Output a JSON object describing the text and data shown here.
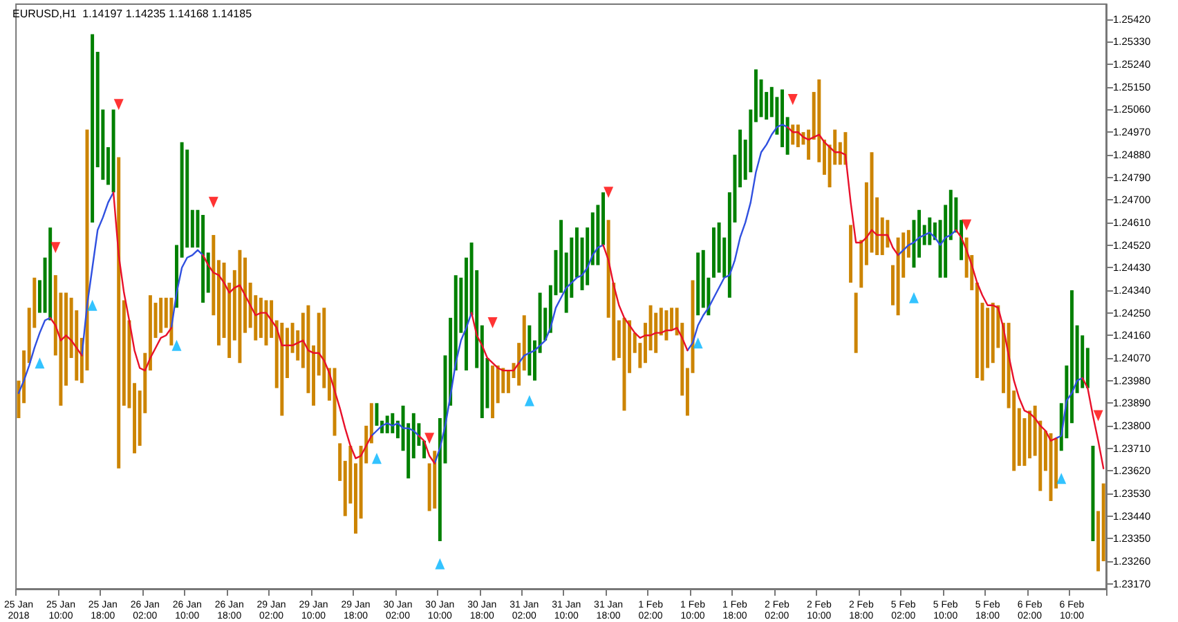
{
  "chart_data": {
    "type": "bar",
    "title": "EURUSD,H1  1.14197 1.14235 1.14168 1.14185",
    "grid": false,
    "categories": [
      "25 Jan 2018",
      null,
      null,
      null,
      null,
      null,
      null,
      null,
      "25 Jan 10:00",
      null,
      null,
      null,
      null,
      null,
      null,
      null,
      "25 Jan 18:00",
      null,
      null,
      null,
      null,
      null,
      null,
      null,
      "26 Jan 02:00",
      null,
      null,
      null,
      null,
      null,
      null,
      null,
      "26 Jan 10:00",
      null,
      null,
      null,
      null,
      null,
      null,
      null,
      "26 Jan 18:00",
      null,
      null,
      null,
      null,
      null,
      null,
      null,
      "29 Jan 02:00",
      null,
      null,
      null,
      null,
      null,
      null,
      null,
      "29 Jan 10:00",
      null,
      null,
      null,
      null,
      null,
      null,
      null,
      "29 Jan 18:00",
      null,
      null,
      null,
      null,
      null,
      null,
      null,
      "30 Jan 02:00",
      null,
      null,
      null,
      null,
      null,
      null,
      null,
      "30 Jan 10:00",
      null,
      null,
      null,
      null,
      null,
      null,
      null,
      "30 Jan 18:00",
      null,
      null,
      null,
      null,
      null,
      null,
      null,
      "31 Jan 02:00",
      null,
      null,
      null,
      null,
      null,
      null,
      null,
      "31 Jan 10:00",
      null,
      null,
      null,
      null,
      null,
      null,
      null,
      "31 Jan 18:00",
      null,
      null,
      null,
      null,
      null,
      null,
      null,
      "1 Feb 02:00",
      null,
      null,
      null,
      null,
      null,
      null,
      null,
      "1 Feb 10:00",
      null,
      null,
      null,
      null,
      null,
      null,
      null,
      "1 Feb 18:00",
      null,
      null,
      null,
      null,
      null,
      null,
      null,
      "2 Feb 02:00",
      null,
      null,
      null,
      null,
      null,
      null,
      null,
      "2 Feb 10:00",
      null,
      null,
      null,
      null,
      null,
      null,
      null,
      "2 Feb 18:00",
      null,
      null,
      null,
      null,
      null,
      null,
      null,
      "5 Feb 02:00",
      null,
      null,
      null,
      null,
      null,
      null,
      null,
      "5 Feb 10:00",
      null,
      null,
      null,
      null,
      null,
      null,
      null,
      "5 Feb 18:00",
      null,
      null,
      null,
      null,
      null,
      null,
      null,
      "6 Feb 02:00",
      null,
      null,
      null,
      null,
      null,
      null,
      null,
      "6 Feb 10:00",
      null,
      null,
      null,
      null,
      null,
      null
    ],
    "ylim": [
      1.2315,
      1.2548
    ],
    "yticks": [
      {
        "value": 1.2317,
        "label": "1.23170"
      },
      {
        "value": 1.2326,
        "label": "1.23260"
      },
      {
        "value": 1.2335,
        "label": "1.23350"
      },
      {
        "value": 1.2344,
        "label": "1.23440"
      },
      {
        "value": 1.2353,
        "label": "1.23530"
      },
      {
        "value": 1.2362,
        "label": "1.23620"
      },
      {
        "value": 1.2371,
        "label": "1.23710"
      },
      {
        "value": 1.238,
        "label": "1.23800"
      },
      {
        "value": 1.2389,
        "label": "1.23890"
      },
      {
        "value": 1.2398,
        "label": "1.23980"
      },
      {
        "value": 1.2407,
        "label": "1.24070"
      },
      {
        "value": 1.2416,
        "label": "1.24160"
      },
      {
        "value": 1.2425,
        "label": "1.24250"
      },
      {
        "value": 1.2434,
        "label": "1.24340"
      },
      {
        "value": 1.2443,
        "label": "1.24430"
      },
      {
        "value": 1.2452,
        "label": "1.24520"
      },
      {
        "value": 1.2461,
        "label": "1.24610"
      },
      {
        "value": 1.247,
        "label": "1.24700"
      },
      {
        "value": 1.2479,
        "label": "1.24790"
      },
      {
        "value": 1.2488,
        "label": "1.24880"
      },
      {
        "value": 1.2497,
        "label": "1.24970"
      },
      {
        "value": 1.2506,
        "label": "1.25060"
      },
      {
        "value": 1.2515,
        "label": "1.25150"
      },
      {
        "value": 1.2524,
        "label": "1.25240"
      },
      {
        "value": 1.2533,
        "label": "1.25330"
      },
      {
        "value": 1.2542,
        "label": "1.25420"
      }
    ],
    "series": [
      {
        "base": [
          1.2383,
          1.2389,
          1.2405,
          1.2419,
          1.2425,
          1.2425,
          1.2422,
          1.2408,
          1.2388,
          1.2396,
          1.2407,
          1.2398,
          1.2397,
          1.2402,
          1.2461,
          1.2483,
          1.2478,
          1.2476,
          1.2473,
          1.2363,
          1.2388,
          1.2387,
          1.2369,
          1.2372,
          1.2385,
          1.2402,
          1.2415,
          1.2417,
          1.2419,
          1.2412,
          1.2427,
          1.2447,
          1.2451,
          1.2451,
          1.2451,
          1.2429,
          1.2433,
          1.2424,
          1.2412,
          1.2415,
          1.2407,
          1.2414,
          1.2405,
          1.2417,
          1.2419,
          1.2414,
          1.2415,
          1.2412,
          1.2415,
          1.2395,
          1.2384,
          1.2399,
          1.2409,
          1.2406,
          1.2403,
          1.2393,
          1.2388,
          1.24,
          1.2395,
          1.239,
          1.2376,
          1.2358,
          1.2344,
          1.2349,
          1.2337,
          1.2343,
          1.2365,
          1.2373,
          1.238,
          1.2377,
          1.2377,
          1.2377,
          1.2375,
          1.237,
          1.2359,
          1.2367,
          1.2372,
          1.2367,
          1.2346,
          1.2347,
          1.2334,
          1.2365,
          1.2388,
          1.2402,
          1.2417,
          1.2402,
          1.2424,
          1.2403,
          1.2383,
          1.2387,
          1.2383,
          1.2389,
          1.2393,
          1.2393,
          1.2399,
          1.2396,
          1.2402,
          1.24,
          1.2398,
          1.2409,
          1.2414,
          1.2417,
          1.2432,
          1.2433,
          1.2425,
          1.2431,
          1.2439,
          1.2434,
          1.2436,
          1.2444,
          1.2444,
          1.2452,
          1.2423,
          1.2406,
          1.2407,
          1.2386,
          1.2401,
          1.2409,
          1.2403,
          1.2405,
          1.241,
          1.2409,
          1.2416,
          1.2414,
          1.2418,
          1.2416,
          1.2392,
          1.2384,
          1.2401,
          1.2424,
          1.2427,
          1.2424,
          1.2439,
          1.2441,
          1.2439,
          1.2431,
          1.2461,
          1.2475,
          1.2478,
          1.2481,
          1.2501,
          1.2503,
          1.2502,
          1.2503,
          1.2496,
          1.2491,
          1.2488,
          1.2492,
          1.2491,
          1.2492,
          1.2486,
          1.2494,
          1.2485,
          1.248,
          1.2475,
          1.2484,
          1.2484,
          1.2484,
          1.2437,
          1.2409,
          1.2435,
          1.2444,
          1.2449,
          1.2448,
          1.2448,
          1.2451,
          1.2428,
          1.2424,
          1.2439,
          1.2447,
          1.2443,
          1.2447,
          1.2452,
          1.2452,
          1.2454,
          1.2439,
          1.2439,
          1.2454,
          1.2457,
          1.2446,
          1.2439,
          1.2434,
          1.2399,
          1.2398,
          1.2403,
          1.2405,
          1.2411,
          1.2393,
          1.2387,
          1.2362,
          1.2364,
          1.2364,
          1.2367,
          1.2368,
          1.2354,
          1.2362,
          1.235,
          1.2355,
          1.237,
          1.2375,
          1.2381,
          1.2393,
          1.2395,
          1.2395,
          1.2334,
          1.2322,
          1.2326
        ],
        "values": [
          0.0015,
          0.0021,
          0.0022,
          0.002,
          0.0013,
          0.0022,
          0.0037,
          0.0032,
          0.0045,
          0.0037,
          0.0024,
          0.0028,
          0.0018,
          0.0096,
          0.0075,
          0.0046,
          0.0028,
          0.0015,
          0.0033,
          0.0124,
          0.0042,
          0.0035,
          0.0028,
          0.0022,
          0.0024,
          0.003,
          0.0014,
          0.0014,
          0.0012,
          0.0019,
          0.0025,
          0.0046,
          0.0039,
          0.0015,
          0.0015,
          0.0035,
          0.0016,
          0.0032,
          0.0034,
          0.003,
          0.003,
          0.0028,
          0.0045,
          0.003,
          0.0018,
          0.0018,
          0.0016,
          0.0018,
          0.0015,
          0.0027,
          0.0037,
          0.002,
          0.0012,
          0.0012,
          0.0022,
          0.0035,
          0.0024,
          0.0025,
          0.0032,
          0.0013,
          0.0027,
          0.0015,
          0.0022,
          0.0023,
          0.0028,
          0.0029,
          0.0015,
          0.0016,
          0.0009,
          0.0005,
          0.0007,
          0.0008,
          0.0007,
          0.0018,
          0.0022,
          0.0018,
          0.0009,
          0.0007,
          0.0019,
          0.0023,
          0.0049,
          0.0043,
          0.0035,
          0.0038,
          0.0022,
          0.0045,
          0.0029,
          0.0039,
          0.0037,
          0.002,
          0.0021,
          0.0015,
          0.001,
          0.0009,
          0.0006,
          0.0017,
          0.0022,
          0.002,
          0.0016,
          0.0024,
          0.0013,
          0.0019,
          0.0018,
          0.0029,
          0.0024,
          0.0024,
          0.002,
          0.0021,
          0.0023,
          0.0021,
          0.0024,
          0.0021,
          0.0039,
          0.0031,
          0.0015,
          0.0037,
          0.0021,
          0.0008,
          0.001,
          0.0016,
          0.0018,
          0.0016,
          0.0011,
          0.0012,
          0.0009,
          0.0011,
          0.0029,
          0.0019,
          0.0037,
          0.0025,
          0.0023,
          0.0015,
          0.002,
          0.002,
          0.0016,
          0.0042,
          0.0027,
          0.0023,
          0.0016,
          0.0025,
          0.0021,
          0.0015,
          0.0011,
          0.0012,
          0.0015,
          0.0023,
          0.0015,
          0.0008,
          0.0009,
          0.0005,
          0.0012,
          0.0019,
          0.0033,
          0.0014,
          0.0017,
          0.0014,
          0.0009,
          0.0013,
          0.0023,
          0.0024,
          0.0019,
          0.0033,
          0.004,
          0.0023,
          0.0015,
          0.0011,
          0.0016,
          0.0031,
          0.0018,
          0.0011,
          0.0019,
          0.0019,
          0.0008,
          0.0011,
          0.0007,
          0.0023,
          0.0029,
          0.002,
          0.0014,
          0.0016,
          0.0016,
          0.0014,
          0.0038,
          0.0031,
          0.0024,
          0.0024,
          0.0017,
          0.0028,
          0.0034,
          0.0032,
          0.0023,
          0.0019,
          0.0019,
          0.002,
          0.0028,
          0.0016,
          0.0027,
          0.002,
          0.0019,
          0.0029,
          0.0053,
          0.0027,
          0.0021,
          0.0016,
          0.0038,
          0.0024,
          0.0031
        ],
        "colors": [
          "#cc8400",
          "#cc8400",
          "#cc8400",
          "#cc8400",
          "#008000",
          "#008000",
          "#008000",
          "#cc8400",
          "#cc8400",
          "#cc8400",
          "#cc8400",
          "#cc8400",
          "#cc8400",
          "#cc8400",
          "#008000",
          "#008000",
          "#008000",
          "#008000",
          "#008000",
          "#cc8400",
          "#cc8400",
          "#cc8400",
          "#cc8400",
          "#cc8400",
          "#cc8400",
          "#cc8400",
          "#cc8400",
          "#cc8400",
          "#cc8400",
          "#cc8400",
          "#008000",
          "#008000",
          "#008000",
          "#008000",
          "#008000",
          "#008000",
          "#008000",
          "#cc8400",
          "#cc8400",
          "#cc8400",
          "#cc8400",
          "#cc8400",
          "#cc8400",
          "#cc8400",
          "#cc8400",
          "#cc8400",
          "#cc8400",
          "#cc8400",
          "#cc8400",
          "#cc8400",
          "#cc8400",
          "#cc8400",
          "#cc8400",
          "#cc8400",
          "#cc8400",
          "#cc8400",
          "#cc8400",
          "#cc8400",
          "#cc8400",
          "#cc8400",
          "#cc8400",
          "#cc8400",
          "#cc8400",
          "#cc8400",
          "#cc8400",
          "#cc8400",
          "#cc8400",
          "#cc8400",
          "#008000",
          "#008000",
          "#008000",
          "#008000",
          "#008000",
          "#008000",
          "#008000",
          "#008000",
          "#008000",
          "#008000",
          "#cc8400",
          "#cc8400",
          "#008000",
          "#008000",
          "#008000",
          "#008000",
          "#008000",
          "#008000",
          "#008000",
          "#008000",
          "#008000",
          "#008000",
          "#cc8400",
          "#cc8400",
          "#cc8400",
          "#cc8400",
          "#cc8400",
          "#cc8400",
          "#cc8400",
          "#008000",
          "#008000",
          "#008000",
          "#008000",
          "#008000",
          "#008000",
          "#008000",
          "#008000",
          "#008000",
          "#008000",
          "#008000",
          "#008000",
          "#008000",
          "#008000",
          "#008000",
          "#cc8400",
          "#cc8400",
          "#cc8400",
          "#cc8400",
          "#cc8400",
          "#cc8400",
          "#cc8400",
          "#cc8400",
          "#cc8400",
          "#cc8400",
          "#cc8400",
          "#cc8400",
          "#cc8400",
          "#cc8400",
          "#cc8400",
          "#cc8400",
          "#cc8400",
          "#008000",
          "#008000",
          "#008000",
          "#008000",
          "#008000",
          "#008000",
          "#008000",
          "#008000",
          "#008000",
          "#008000",
          "#008000",
          "#008000",
          "#008000",
          "#008000",
          "#008000",
          "#008000",
          "#008000",
          "#008000",
          "#cc8400",
          "#cc8400",
          "#cc8400",
          "#cc8400",
          "#cc8400",
          "#cc8400",
          "#cc8400",
          "#cc8400",
          "#cc8400",
          "#cc8400",
          "#cc8400",
          "#cc8400",
          "#cc8400",
          "#cc8400",
          "#cc8400",
          "#cc8400",
          "#cc8400",
          "#cc8400",
          "#cc8400",
          "#cc8400",
          "#cc8400",
          "#cc8400",
          "#cc8400",
          "#008000",
          "#008000",
          "#008000",
          "#008000",
          "#008000",
          "#008000",
          "#008000",
          "#008000",
          "#008000",
          "#008000",
          "#cc8400",
          "#cc8400",
          "#cc8400",
          "#cc8400",
          "#cc8400",
          "#cc8400",
          "#cc8400",
          "#cc8400",
          "#cc8400",
          "#cc8400",
          "#cc8400",
          "#cc8400",
          "#cc8400",
          "#cc8400",
          "#cc8400",
          "#cc8400",
          "#cc8400",
          "#cc8400",
          "#008000",
          "#008000",
          "#008000",
          "#008000",
          "#008000",
          "#008000",
          "#008000",
          "#cc8400",
          "#cc8400"
        ]
      },
      {
        "type": "line",
        "color": "#3050e0",
        "values": [
          1.2393,
          1.2398,
          1.2404,
          1.2411,
          1.2417,
          1.2422,
          1.2423,
          null,
          null,
          null,
          null,
          null,
          1.2408,
          1.2428,
          1.2443,
          1.2458,
          1.2463,
          1.2469,
          1.2473,
          null,
          null,
          null,
          null,
          null,
          null,
          null,
          null,
          null,
          null,
          1.2419,
          1.2433,
          1.2443,
          1.2447,
          1.2448,
          1.245,
          1.2448,
          null,
          null,
          null,
          null,
          null,
          null,
          null,
          null,
          null,
          null,
          null,
          null,
          null,
          null,
          null,
          null,
          null,
          null,
          null,
          null,
          null,
          null,
          null,
          null,
          null,
          null,
          null,
          null,
          null,
          null,
          null,
          1.2376,
          1.2378,
          1.238,
          1.2381,
          1.238,
          1.2381,
          1.2379,
          1.2379,
          1.2378,
          1.2376,
          null,
          null,
          1.2365,
          1.2371,
          1.238,
          1.2392,
          1.2405,
          1.2414,
          1.2419,
          1.2425,
          null,
          null,
          null,
          null,
          null,
          null,
          null,
          null,
          1.2405,
          1.2408,
          1.2409,
          1.241,
          1.2412,
          1.2414,
          1.2419,
          1.2427,
          1.2431,
          1.2435,
          1.2437,
          1.2439,
          1.244,
          1.2443,
          1.2448,
          1.2451,
          1.2452,
          null,
          null,
          null,
          null,
          null,
          null,
          null,
          null,
          null,
          null,
          null,
          null,
          null,
          null,
          null,
          1.241,
          1.2413,
          1.242,
          1.2424,
          1.2427,
          1.2431,
          1.2435,
          1.2439,
          1.244,
          1.2446,
          1.2455,
          1.2461,
          1.2469,
          1.2481,
          1.2489,
          1.2492,
          1.2496,
          1.2499,
          1.25,
          1.2499,
          null,
          null,
          null,
          null,
          null,
          null,
          null,
          null,
          null,
          null,
          null,
          null,
          null,
          null,
          null,
          null,
          null,
          null,
          null,
          null,
          1.2448,
          1.245,
          1.2452,
          1.2453,
          1.2455,
          1.2456,
          1.2457,
          1.2455,
          1.2452,
          1.2455,
          1.2456,
          1.2458,
          null,
          null,
          null,
          null,
          null,
          null,
          null,
          null,
          null,
          null,
          null,
          null,
          null,
          null,
          null,
          null,
          null,
          null,
          1.2375,
          1.2376,
          1.239,
          1.2393,
          1.2398,
          1.2399,
          null,
          null,
          null,
          null
        ]
      },
      {
        "type": "line",
        "color": "#e8102a",
        "values": [
          null,
          null,
          null,
          null,
          null,
          null,
          1.2423,
          1.242,
          1.2414,
          1.2416,
          1.2414,
          1.2411,
          1.2408,
          null,
          null,
          null,
          null,
          null,
          1.2473,
          1.2448,
          1.2433,
          1.2422,
          1.241,
          1.2403,
          1.2402,
          1.2407,
          1.2411,
          1.2415,
          1.2416,
          1.2419,
          null,
          null,
          null,
          null,
          null,
          1.2448,
          1.2444,
          1.2441,
          1.244,
          1.2437,
          1.2433,
          1.2435,
          1.2436,
          1.2432,
          1.2428,
          1.2424,
          1.2425,
          1.2425,
          1.2422,
          1.2419,
          1.2412,
          1.2412,
          1.2412,
          1.2413,
          1.2414,
          1.241,
          1.2409,
          1.2409,
          1.2406,
          1.2401,
          1.2394,
          1.2387,
          1.2379,
          1.2372,
          1.2367,
          1.2368,
          1.2372,
          1.2376,
          null,
          null,
          null,
          null,
          null,
          null,
          null,
          null,
          1.2376,
          1.2374,
          1.2368,
          1.2365,
          null,
          null,
          null,
          null,
          null,
          null,
          1.2425,
          1.2416,
          1.2412,
          1.2407,
          1.2405,
          1.2403,
          1.2402,
          1.2402,
          1.2402,
          1.2405,
          null,
          null,
          null,
          null,
          null,
          null,
          null,
          null,
          null,
          null,
          null,
          null,
          null,
          null,
          null,
          1.2452,
          1.2446,
          1.2436,
          1.2428,
          1.2423,
          1.242,
          1.2417,
          1.2415,
          1.2416,
          1.2416,
          1.2417,
          1.2417,
          1.2418,
          1.2418,
          1.2419,
          1.2415,
          1.241,
          null,
          null,
          null,
          null,
          null,
          null,
          null,
          null,
          null,
          null,
          null,
          null,
          null,
          null,
          null,
          null,
          null,
          null,
          1.2499,
          1.2497,
          1.2497,
          1.2495,
          1.2494,
          1.2495,
          1.2496,
          1.2493,
          1.2491,
          1.2489,
          1.2489,
          1.2488,
          1.2469,
          1.2453,
          1.2453,
          1.2455,
          1.2458,
          1.2456,
          1.2456,
          1.2456,
          1.2451,
          1.2448,
          null,
          null,
          null,
          null,
          null,
          null,
          null,
          null,
          null,
          null,
          1.2458,
          1.2455,
          1.245,
          1.2444,
          1.2437,
          1.2432,
          1.2428,
          1.2428,
          1.2427,
          1.2419,
          1.2408,
          1.2398,
          1.2391,
          1.2386,
          1.2385,
          1.2383,
          1.238,
          1.2378,
          1.2374,
          1.2375,
          null,
          null,
          null,
          null,
          1.2399,
          1.2395,
          1.2384,
          1.2374,
          1.2363
        ]
      },
      {
        "type": "scatter",
        "marker": "triangle",
        "color": "#00b4ff",
        "values": [
          null,
          null,
          null,
          null,
          1.2405,
          null,
          null,
          null,
          null,
          null,
          null,
          null,
          null,
          null,
          1.2428,
          null,
          null,
          null,
          null,
          null,
          null,
          null,
          null,
          null,
          null,
          null,
          null,
          null,
          null,
          null,
          1.2412,
          null,
          null,
          null,
          null,
          null,
          null,
          null,
          null,
          null,
          null,
          null,
          null,
          null,
          null,
          null,
          null,
          null,
          null,
          null,
          null,
          null,
          null,
          null,
          null,
          null,
          null,
          null,
          null,
          null,
          null,
          null,
          null,
          null,
          null,
          null,
          null,
          null,
          1.2367,
          null,
          null,
          null,
          null,
          null,
          null,
          null,
          null,
          null,
          null,
          null,
          1.2325,
          null,
          null,
          null,
          null,
          null,
          null,
          null,
          null,
          null,
          null,
          null,
          null,
          null,
          null,
          null,
          null,
          1.239,
          null,
          null,
          null,
          null,
          null,
          null,
          null,
          null,
          null,
          null,
          null,
          null,
          null,
          null,
          null,
          null,
          null,
          null,
          null,
          null,
          null,
          null,
          null,
          null,
          null,
          null,
          null,
          null,
          null,
          null,
          null,
          1.2413,
          null,
          null,
          null,
          null,
          null,
          null,
          null,
          null,
          null,
          null,
          null,
          null,
          null,
          null,
          null,
          null,
          null,
          null,
          null,
          null,
          null,
          null,
          null,
          null,
          null,
          null,
          null,
          null,
          null,
          null,
          null,
          null,
          null,
          null,
          null,
          null,
          null,
          null,
          null,
          null,
          1.2431,
          null,
          null,
          null,
          null,
          null,
          null,
          null,
          null,
          null,
          null,
          null,
          null,
          null,
          null,
          null,
          null,
          null,
          null,
          null,
          null,
          null,
          null,
          null,
          null,
          null,
          null,
          null,
          1.2359,
          null,
          null,
          null,
          null,
          null,
          null,
          null,
          null
        ]
      },
      {
        "type": "scatter",
        "marker": "triangle",
        "color": "#ff0000",
        "values": [
          null,
          null,
          null,
          null,
          null,
          null,
          null,
          1.2451,
          null,
          null,
          null,
          null,
          null,
          null,
          null,
          null,
          null,
          null,
          null,
          1.2508,
          null,
          null,
          null,
          null,
          null,
          null,
          null,
          null,
          null,
          null,
          null,
          null,
          null,
          null,
          null,
          null,
          null,
          1.2469,
          null,
          null,
          null,
          null,
          null,
          null,
          null,
          null,
          null,
          null,
          null,
          null,
          null,
          null,
          null,
          null,
          null,
          null,
          null,
          null,
          null,
          null,
          null,
          null,
          null,
          null,
          null,
          null,
          null,
          null,
          null,
          null,
          null,
          null,
          null,
          null,
          null,
          null,
          null,
          null,
          1.2375,
          null,
          null,
          null,
          null,
          null,
          null,
          null,
          null,
          null,
          null,
          null,
          1.2421,
          null,
          null,
          null,
          null,
          null,
          null,
          null,
          null,
          null,
          null,
          null,
          null,
          null,
          null,
          null,
          null,
          null,
          null,
          null,
          null,
          null,
          1.2473,
          null,
          null,
          null,
          null,
          null,
          null,
          null,
          null,
          null,
          null,
          null,
          null,
          null,
          null,
          null,
          null,
          null,
          null,
          null,
          null,
          null,
          null,
          null,
          null,
          null,
          null,
          null,
          null,
          null,
          null,
          null,
          null,
          null,
          null,
          1.251,
          null,
          null,
          null,
          null,
          null,
          null,
          null,
          null,
          null,
          null,
          null,
          null,
          null,
          null,
          null,
          null,
          null,
          null,
          null,
          null,
          null,
          null,
          null,
          null,
          null,
          null,
          null,
          null,
          null,
          null,
          null,
          null,
          1.246,
          null,
          null,
          null,
          null,
          null,
          null,
          null,
          null,
          null,
          null,
          null,
          null,
          null,
          null,
          null,
          null,
          null,
          null,
          null,
          null,
          null,
          null,
          null,
          null,
          1.2384,
          null
        ]
      }
    ]
  }
}
